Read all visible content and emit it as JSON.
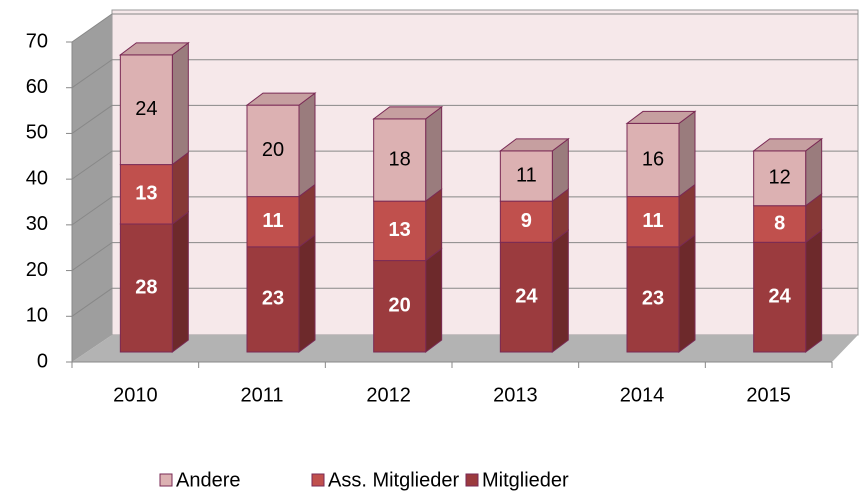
{
  "chart_data": {
    "type": "bar3d_stacked",
    "categories": [
      "2010",
      "2011",
      "2012",
      "2013",
      "2014",
      "2015"
    ],
    "series": [
      {
        "name": "Mitglieder",
        "color": "#9b3b3e",
        "values": [
          28,
          23,
          20,
          24,
          23,
          24
        ]
      },
      {
        "name": "Ass. Mitglieder",
        "color": "#c0504d",
        "values": [
          13,
          11,
          13,
          9,
          11,
          8
        ]
      },
      {
        "name": "Andere",
        "color": "#dcb1b2",
        "values": [
          24,
          20,
          18,
          11,
          16,
          12
        ]
      }
    ],
    "ylim": [
      0,
      70
    ],
    "yticks": [
      0,
      10,
      20,
      30,
      40,
      50,
      60,
      70
    ],
    "grid": true,
    "legend": "bottom"
  }
}
